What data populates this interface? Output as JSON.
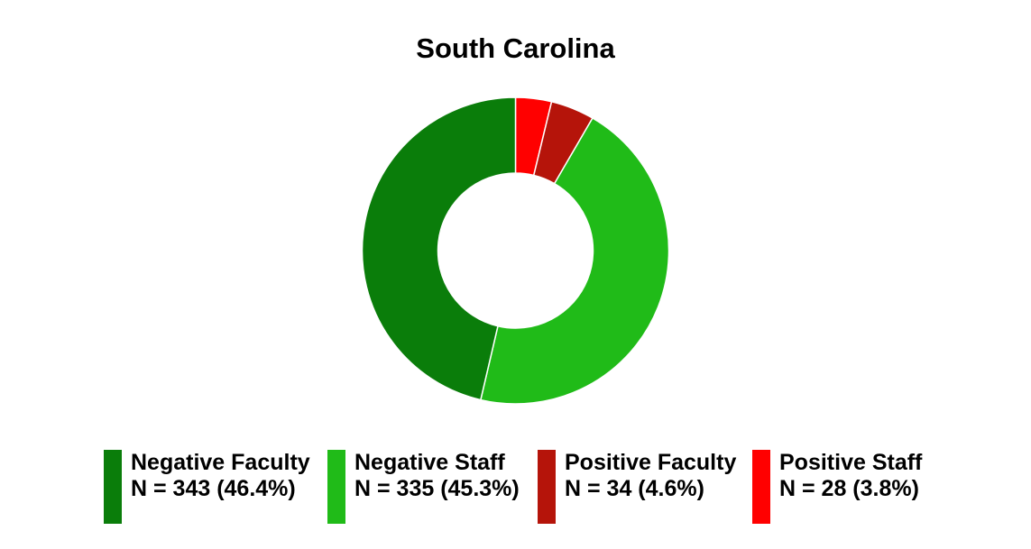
{
  "chart_data": {
    "type": "pie",
    "donut": true,
    "title": "South Carolina",
    "legend_position": "bottom",
    "slices": [
      {
        "label": "Negative Faculty",
        "value": 343,
        "display": "N = 343 (46.4%)",
        "color": "#0a7d0a"
      },
      {
        "label": "Negative Staff",
        "value": 335,
        "display": "N = 335 (45.3%)",
        "color": "#20bb18"
      },
      {
        "label": "Positive Faculty",
        "value": 34,
        "display": "N = 34 (4.6%)",
        "color": "#b5140a"
      },
      {
        "label": "Positive Staff",
        "value": 28,
        "display": "N = 28 (3.8%)",
        "color": "#ff0000"
      }
    ],
    "draw_order": [
      3,
      2,
      1,
      0
    ]
  }
}
